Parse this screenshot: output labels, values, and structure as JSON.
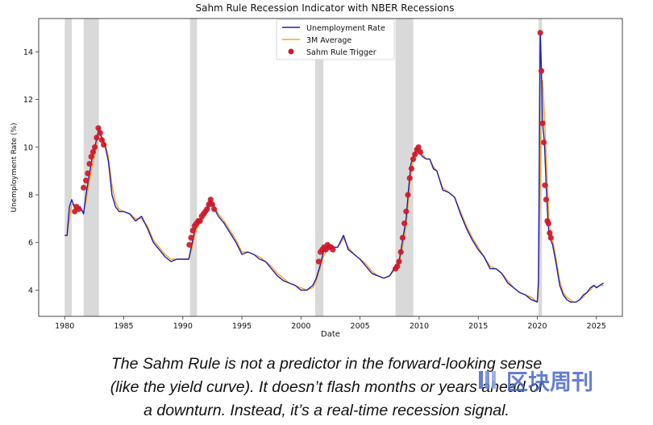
{
  "colors": {
    "unemployment": "#1f1fb0",
    "average": "#f5a623",
    "trigger": "#d0182a",
    "recession": "#d9d9d9",
    "watermark": "#4a67c9"
  },
  "caption": {
    "line1": "The Sahm Rule is not a predictor in the forward-looking sense",
    "line2": "(like the yield curve). It doesn’t flash months or years ahead of",
    "line3": "a downturn. Instead, it’s a real-time recession signal."
  },
  "watermark": {
    "text": "区块周刊",
    "logo": "blockchain-weekly-logo"
  },
  "chart_data": {
    "type": "line",
    "title": "Sahm Rule Recession Indicator with NBER Recessions",
    "xlabel": "Date",
    "ylabel": "Unemployment Rate (%)",
    "xlim": [
      1977.8,
      2027.2
    ],
    "ylim": [
      2.9,
      15.4
    ],
    "xticks": [
      1980,
      1985,
      1990,
      1995,
      2000,
      2005,
      2010,
      2015,
      2020,
      2025
    ],
    "yticks": [
      4,
      6,
      8,
      10,
      12,
      14
    ],
    "grid": false,
    "legend_position": "top-center",
    "legend": [
      "Unemployment Rate",
      "3M Average",
      "Sahm Rule Trigger"
    ],
    "recessions": [
      [
        1980.0,
        1980.6
      ],
      [
        1981.6,
        1982.9
      ],
      [
        1990.6,
        1991.2
      ],
      [
        2001.2,
        2001.9
      ],
      [
        2008.0,
        2009.5
      ],
      [
        2020.1,
        2020.4
      ]
    ],
    "series": [
      {
        "name": "Unemployment Rate",
        "x": [
          1980.0,
          1980.2,
          1980.4,
          1980.6,
          1980.8,
          1981.0,
          1981.3,
          1981.6,
          1981.8,
          1982.0,
          1982.3,
          1982.6,
          1982.9,
          1983.1,
          1983.4,
          1983.7,
          1984.0,
          1984.3,
          1984.6,
          1985.0,
          1985.5,
          1986.0,
          1986.5,
          1987.0,
          1987.5,
          1988.0,
          1988.5,
          1989.0,
          1989.5,
          1990.0,
          1990.5,
          1990.8,
          1991.0,
          1991.3,
          1991.6,
          1992.0,
          1992.3,
          1992.5,
          1992.8,
          1993.0,
          1993.5,
          1994.0,
          1994.5,
          1995.0,
          1995.5,
          1996.0,
          1996.5,
          1997.0,
          1997.5,
          1998.0,
          1998.5,
          1999.0,
          1999.5,
          2000.0,
          2000.5,
          2001.0,
          2001.3,
          2001.6,
          2001.9,
          2002.2,
          2002.5,
          2002.8,
          2003.1,
          2003.4,
          2003.6,
          2004.0,
          2004.5,
          2005.0,
          2005.5,
          2006.0,
          2006.5,
          2007.0,
          2007.5,
          2008.0,
          2008.3,
          2008.6,
          2008.9,
          2009.1,
          2009.3,
          2009.5,
          2009.7,
          2009.8,
          2010.0,
          2010.3,
          2010.6,
          2010.9,
          2011.2,
          2011.5,
          2012.0,
          2012.5,
          2013.0,
          2013.5,
          2014.0,
          2014.5,
          2015.0,
          2015.5,
          2016.0,
          2016.5,
          2017.0,
          2017.5,
          2018.0,
          2018.5,
          2019.0,
          2019.5,
          2020.0,
          2020.1,
          2020.25,
          2020.35,
          2020.45,
          2020.6,
          2020.75,
          2020.9,
          2021.0,
          2021.3,
          2021.6,
          2021.9,
          2022.2,
          2022.5,
          2022.8,
          2023.0,
          2023.3,
          2023.6,
          2023.9,
          2024.2,
          2024.5,
          2024.8,
          2025.0,
          2025.3,
          2025.6
        ],
        "values": [
          6.3,
          6.3,
          7.5,
          7.8,
          7.5,
          7.4,
          7.5,
          7.2,
          8.0,
          8.6,
          9.5,
          10.1,
          10.8,
          10.4,
          10.1,
          9.4,
          8.0,
          7.5,
          7.3,
          7.3,
          7.2,
          6.9,
          7.1,
          6.6,
          6.0,
          5.7,
          5.4,
          5.2,
          5.3,
          5.3,
          5.3,
          6.0,
          6.5,
          6.8,
          7.0,
          7.3,
          7.8,
          7.6,
          7.3,
          7.1,
          6.8,
          6.4,
          6.0,
          5.5,
          5.6,
          5.5,
          5.3,
          5.2,
          4.9,
          4.6,
          4.4,
          4.3,
          4.2,
          4.0,
          4.0,
          4.2,
          4.5,
          5.0,
          5.6,
          5.8,
          5.9,
          5.8,
          5.8,
          6.1,
          6.3,
          5.7,
          5.5,
          5.3,
          5.0,
          4.7,
          4.6,
          4.5,
          4.6,
          5.0,
          5.2,
          6.1,
          7.0,
          8.2,
          9.3,
          9.6,
          9.8,
          10.0,
          9.8,
          9.6,
          9.5,
          9.5,
          9.1,
          9.0,
          8.2,
          8.1,
          7.9,
          7.2,
          6.6,
          6.1,
          5.7,
          5.4,
          4.9,
          4.9,
          4.7,
          4.3,
          4.1,
          3.9,
          3.8,
          3.6,
          3.5,
          4.4,
          14.8,
          13.2,
          11.0,
          10.2,
          8.4,
          6.9,
          6.3,
          5.9,
          5.1,
          4.2,
          3.8,
          3.6,
          3.5,
          3.5,
          3.5,
          3.6,
          3.8,
          3.9,
          4.1,
          4.2,
          4.1,
          4.2,
          4.3
        ]
      },
      {
        "name": "3M Average",
        "x": [
          1980.0,
          1980.2,
          1980.4,
          1980.6,
          1980.8,
          1981.0,
          1981.3,
          1981.6,
          1981.8,
          1982.0,
          1982.3,
          1982.6,
          1982.9,
          1983.1,
          1983.4,
          1983.7,
          1984.0,
          1984.3,
          1984.6,
          1985.0,
          1985.5,
          1986.0,
          1986.5,
          1987.0,
          1987.5,
          1988.0,
          1988.5,
          1989.0,
          1989.5,
          1990.0,
          1990.5,
          1990.8,
          1991.0,
          1991.3,
          1991.6,
          1992.0,
          1992.3,
          1992.5,
          1992.8,
          1993.0,
          1993.5,
          1994.0,
          1994.5,
          1995.0,
          1995.5,
          1996.0,
          1996.5,
          1997.0,
          1997.5,
          1998.0,
          1998.5,
          1999.0,
          1999.5,
          2000.0,
          2000.5,
          2001.0,
          2001.3,
          2001.6,
          2001.9,
          2002.2,
          2002.5,
          2002.8,
          2003.1,
          2003.4,
          2003.6,
          2004.0,
          2004.5,
          2005.0,
          2005.5,
          2006.0,
          2006.5,
          2007.0,
          2007.5,
          2008.0,
          2008.3,
          2008.6,
          2008.9,
          2009.1,
          2009.3,
          2009.5,
          2009.7,
          2009.8,
          2010.0,
          2010.3,
          2010.6,
          2010.9,
          2011.2,
          2011.5,
          2012.0,
          2012.5,
          2013.0,
          2013.5,
          2014.0,
          2014.5,
          2015.0,
          2015.5,
          2016.0,
          2016.5,
          2017.0,
          2017.5,
          2018.0,
          2018.5,
          2019.0,
          2019.5,
          2020.0,
          2020.1,
          2020.25,
          2020.35,
          2020.45,
          2020.6,
          2020.75,
          2020.9,
          2021.0,
          2021.3,
          2021.6,
          2021.9,
          2022.2,
          2022.5,
          2022.8,
          2023.0,
          2023.3,
          2023.6,
          2023.9,
          2024.2,
          2024.5,
          2024.8,
          2025.0,
          2025.3,
          2025.6
        ],
        "values": [
          6.3,
          6.3,
          7.0,
          7.6,
          7.6,
          7.4,
          7.4,
          7.3,
          7.7,
          8.3,
          9.1,
          9.8,
          10.5,
          10.5,
          10.2,
          9.6,
          8.4,
          7.7,
          7.4,
          7.3,
          7.2,
          7.0,
          7.0,
          6.7,
          6.1,
          5.8,
          5.5,
          5.3,
          5.3,
          5.3,
          5.3,
          5.8,
          6.3,
          6.7,
          6.9,
          7.2,
          7.6,
          7.6,
          7.4,
          7.2,
          6.9,
          6.5,
          6.1,
          5.6,
          5.6,
          5.5,
          5.4,
          5.2,
          5.0,
          4.7,
          4.5,
          4.3,
          4.2,
          4.1,
          4.0,
          4.1,
          4.4,
          4.9,
          5.4,
          5.7,
          5.8,
          5.8,
          5.8,
          6.0,
          6.2,
          5.8,
          5.5,
          5.3,
          5.1,
          4.8,
          4.6,
          4.5,
          4.6,
          4.9,
          5.1,
          5.8,
          6.7,
          7.8,
          8.9,
          9.4,
          9.7,
          9.9,
          9.8,
          9.7,
          9.5,
          9.5,
          9.2,
          9.0,
          8.3,
          8.1,
          7.9,
          7.3,
          6.7,
          6.2,
          5.8,
          5.4,
          5.0,
          4.9,
          4.7,
          4.4,
          4.1,
          3.9,
          3.8,
          3.7,
          3.5,
          3.9,
          8.5,
          11.8,
          12.8,
          11.4,
          9.6,
          7.9,
          6.8,
          6.1,
          5.3,
          4.4,
          3.9,
          3.7,
          3.6,
          3.5,
          3.5,
          3.6,
          3.7,
          3.9,
          4.0,
          4.2,
          4.1,
          4.2,
          4.2
        ]
      },
      {
        "name": "Sahm Rule Trigger",
        "x": [
          1980.85,
          1981.0,
          1981.2,
          1981.6,
          1981.8,
          1981.95,
          1982.1,
          1982.25,
          1982.4,
          1982.55,
          1982.7,
          1982.85,
          1983.0,
          1983.15,
          1983.3,
          1990.55,
          1990.7,
          1990.85,
          1991.0,
          1991.15,
          1991.3,
          1991.45,
          1991.6,
          1991.75,
          1991.9,
          1992.05,
          1992.2,
          1992.35,
          1992.5,
          1992.65,
          2001.5,
          2001.65,
          2001.8,
          2001.95,
          2002.1,
          2002.25,
          2002.4,
          2002.55,
          2002.7,
          2008.0,
          2008.15,
          2008.3,
          2008.45,
          2008.6,
          2008.75,
          2008.9,
          2009.05,
          2009.2,
          2009.35,
          2009.5,
          2009.65,
          2009.8,
          2009.95,
          2010.1,
          2020.25,
          2020.35,
          2020.45,
          2020.55,
          2020.65,
          2020.75,
          2020.85,
          2020.95,
          2021.05,
          2021.15
        ],
        "values": [
          7.3,
          7.5,
          7.4,
          8.3,
          8.6,
          8.9,
          9.3,
          9.6,
          9.8,
          10.0,
          10.4,
          10.8,
          10.6,
          10.3,
          10.1,
          5.9,
          6.2,
          6.5,
          6.7,
          6.8,
          6.9,
          6.9,
          7.1,
          7.2,
          7.3,
          7.4,
          7.6,
          7.8,
          7.6,
          7.4,
          5.2,
          5.6,
          5.7,
          5.8,
          5.7,
          5.9,
          5.8,
          5.8,
          5.7,
          4.9,
          5.0,
          5.2,
          5.6,
          6.2,
          6.8,
          7.3,
          8.0,
          8.7,
          9.1,
          9.5,
          9.7,
          9.9,
          10.0,
          9.8,
          14.8,
          13.2,
          11.0,
          10.2,
          8.4,
          7.8,
          6.9,
          6.8,
          6.4,
          6.2
        ]
      }
    ]
  }
}
